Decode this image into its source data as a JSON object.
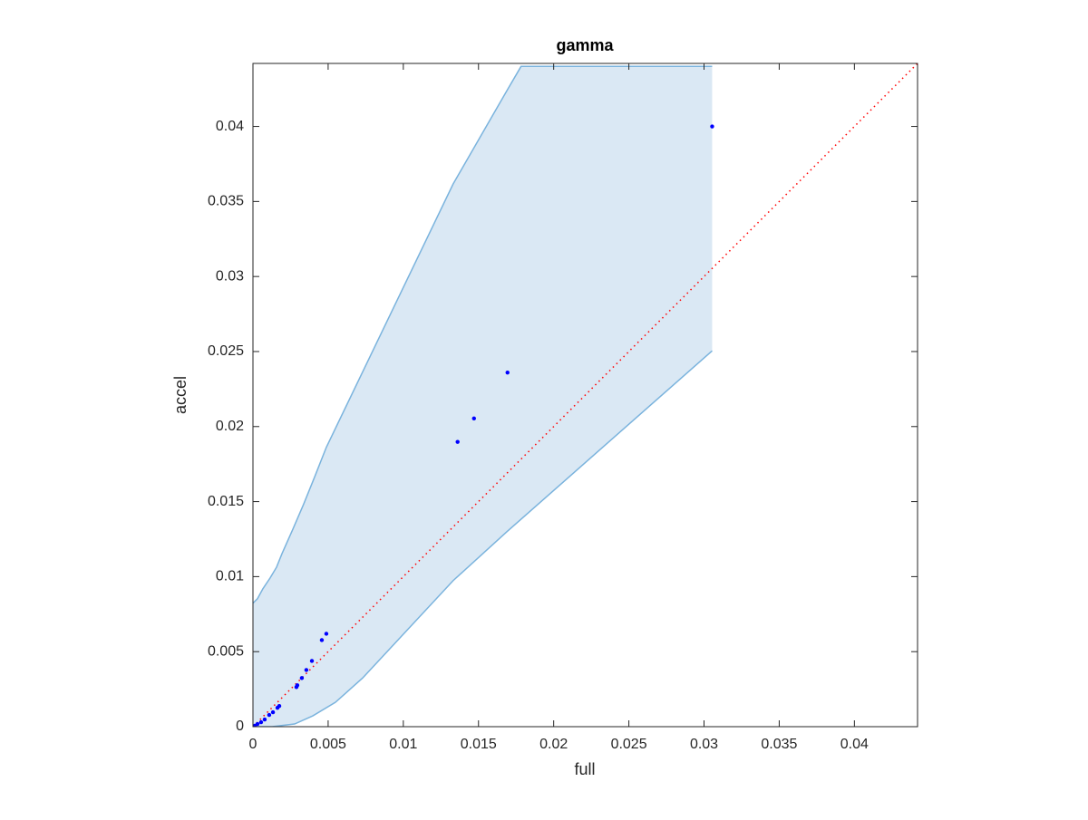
{
  "chart_data": {
    "type": "scatter",
    "title": "gamma",
    "x_label": "full",
    "y_label": "accel",
    "xlim": [
      0,
      0.0442
    ],
    "ylim": [
      0,
      0.0442
    ],
    "xticks": [
      0,
      0.005,
      0.01,
      0.015,
      0.02,
      0.025,
      0.03,
      0.035,
      0.04
    ],
    "yticks": [
      0,
      0.005,
      0.01,
      0.015,
      0.02,
      0.025,
      0.03,
      0.035,
      0.04
    ],
    "color": "#0000ff",
    "x": [
      0.03054,
      0.01693,
      0.0147,
      0.01361,
      0.00488,
      0.00458,
      0.00392,
      0.00355,
      0.00325,
      0.00295,
      0.00289,
      0.00175,
      0.00163,
      0.00133,
      0.00108,
      0.00078,
      0.00054,
      0.0003,
      0.00012,
      0
    ],
    "values": [
      0.04,
      0.0236,
      0.02054,
      0.01898,
      0.00619,
      0.00577,
      0.00438,
      0.00378,
      0.00324,
      0.00276,
      0.00264,
      0.00138,
      0.00126,
      0.00096,
      0.00078,
      0.00048,
      0.0003,
      0.00018,
      6e-05,
      0
    ],
    "band": {
      "fill": "#dae8f4",
      "edge_color": "#7ab3dd",
      "upper": {
        "x": [
          0,
          0.0003,
          0.00066,
          0.00114,
          0.00157,
          0.00193,
          0.00265,
          0.00337,
          0.0041,
          0.00488,
          0.01331,
          0.01693,
          0.01783,
          0.03054
        ],
        "y": [
          0.00823,
          0.00853,
          0.00919,
          0.00991,
          0.01063,
          0.01153,
          0.01315,
          0.01483,
          0.01664,
          0.01862,
          0.03616,
          0.04246,
          0.044,
          0.044
        ]
      },
      "lower": {
        "x": [
          0.03054,
          0.01693,
          0.01331,
          0.00729,
          0.00548,
          0.00398,
          0.00277,
          0.00127,
          0
        ],
        "y": [
          0.02505,
          0.01303,
          0.00973,
          0.00324,
          0.00162,
          0.00072,
          0.00018,
          0,
          0
        ]
      }
    },
    "reference_line": {
      "color": "#ff0000",
      "x": [
        0,
        0.0442
      ],
      "y": [
        0,
        0.0442
      ]
    }
  }
}
